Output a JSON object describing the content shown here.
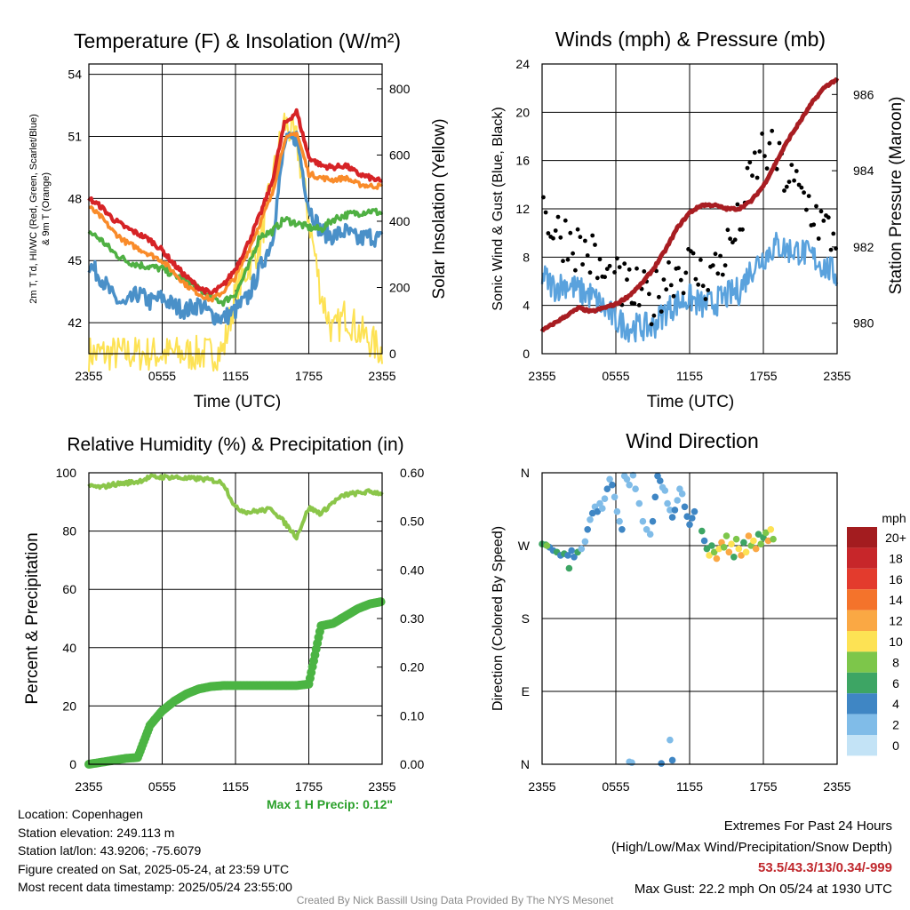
{
  "colors": {
    "red": "#d62326",
    "orange": "#f98b2a",
    "green": "#4fb043",
    "blue": "#4a90c8",
    "yellow": "#fde254",
    "maroon": "#a81d22",
    "black": "#000000",
    "light_blue": "#5aa2dd",
    "rh_green": "#8bc64a",
    "precip_green": "#4bb443",
    "grid": "#000000"
  },
  "chart_data": [
    {
      "id": "temp",
      "type": "line",
      "title": "Temperature (F) & Insolation (W/m²)",
      "xlabel": "Time (UTC)",
      "ylabel": "2m T, T d, HI/WC (Red, Green, Scarlet/Blue) & 9m T (Orange)",
      "ylabel_lines": [
        "2m T, T",
        "d",
        ", HI/WC (Red, Green, Scarlet/Blue)",
        "& 9m T (Orange)"
      ],
      "y2label": "Solar Insolation (Yellow)",
      "x_ticks": [
        "2355",
        "0555",
        "1155",
        "1755",
        "2355"
      ],
      "ylim": [
        40.5,
        54.5
      ],
      "yticks": [
        42,
        45,
        48,
        51,
        54
      ],
      "y2lim": [
        0,
        875
      ],
      "y2ticks": [
        0,
        200,
        400,
        600,
        800
      ],
      "grid": true,
      "x_hours": [
        0,
        1,
        2,
        3,
        4,
        5,
        6,
        7,
        8,
        9,
        10,
        11,
        12,
        13,
        14,
        15,
        16,
        17,
        18,
        19,
        20,
        21,
        22,
        23,
        24
      ],
      "series": [
        {
          "name": "2m T",
          "color": "red",
          "axis": "left",
          "values": [
            48.0,
            47.6,
            47.0,
            46.6,
            46.3,
            46.0,
            45.5,
            44.8,
            44.2,
            43.7,
            43.4,
            43.8,
            44.6,
            45.8,
            47.2,
            48.8,
            51.6,
            52.2,
            50.0,
            49.6,
            49.5,
            49.6,
            49.2,
            49.0,
            48.8
          ]
        },
        {
          "name": "9m T",
          "color": "orange",
          "axis": "left",
          "values": [
            47.6,
            47.1,
            46.4,
            45.9,
            45.6,
            45.3,
            45.0,
            44.4,
            43.8,
            43.4,
            43.1,
            43.5,
            44.2,
            45.4,
            46.8,
            48.2,
            50.8,
            51.2,
            49.2,
            49.0,
            48.9,
            49.0,
            48.7,
            48.6,
            48.6
          ]
        },
        {
          "name": "Td",
          "color": "green",
          "axis": "left",
          "values": [
            46.4,
            46.0,
            45.4,
            45.0,
            44.8,
            44.7,
            44.6,
            44.3,
            44.0,
            43.6,
            43.2,
            43.0,
            43.4,
            44.6,
            46.2,
            46.4,
            47.0,
            46.8,
            46.6,
            46.5,
            47.0,
            47.2,
            47.3,
            47.4,
            47.3
          ]
        },
        {
          "name": "HI/WC",
          "color": "blue",
          "axis": "left",
          "values": [
            44.8,
            44.2,
            43.2,
            42.8,
            43.4,
            43.0,
            43.2,
            42.8,
            42.6,
            42.9,
            42.4,
            42.2,
            42.6,
            43.2,
            44.6,
            46.0,
            50.6,
            51.0,
            47.6,
            46.4,
            46.2,
            46.4,
            46.0,
            46.2,
            46.0
          ]
        },
        {
          "name": "Insolation",
          "color": "yellow",
          "axis": "right",
          "values": [
            0,
            0,
            0,
            0,
            0,
            0,
            0,
            0,
            0,
            0,
            0,
            10,
            180,
            260,
            330,
            520,
            700,
            640,
            410,
            180,
            60,
            120,
            70,
            40,
            5
          ]
        }
      ]
    },
    {
      "id": "winds",
      "type": "line",
      "title": "Winds (mph) & Pressure (mb)",
      "xlabel": "Time (UTC)",
      "ylabel": "Sonic Wind & Gust (Blue, Black)",
      "y2label": "Station Pressure (Maroon)",
      "x_ticks": [
        "2355",
        "0555",
        "1155",
        "1755",
        "2355"
      ],
      "ylim": [
        0,
        24
      ],
      "yticks": [
        0,
        4,
        8,
        12,
        16,
        20,
        24
      ],
      "y2lim": [
        979.2,
        986.8
      ],
      "y2ticks": [
        980,
        982,
        984,
        986
      ],
      "grid": true,
      "x_hours": [
        0,
        1,
        2,
        3,
        4,
        5,
        6,
        7,
        8,
        9,
        10,
        11,
        12,
        13,
        14,
        15,
        16,
        17,
        18,
        19,
        20,
        21,
        22,
        23,
        24
      ],
      "series": [
        {
          "name": "Wind",
          "color": "light_blue",
          "axis": "left",
          "values": [
            6.5,
            5.5,
            5.8,
            5.2,
            4.8,
            3.8,
            2.8,
            2.2,
            2.2,
            2.2,
            3.5,
            4.2,
            4.6,
            4.0,
            4.2,
            4.8,
            5.2,
            7.0,
            8.0,
            9.0,
            8.6,
            8.5,
            8.0,
            7.2,
            6.5
          ]
        },
        {
          "name": "Gust",
          "color": "black",
          "axis": "left",
          "style": "points",
          "values": [
            12.5,
            10.0,
            9.8,
            8.8,
            8.2,
            6.2,
            5.8,
            5.2,
            4.8,
            4.2,
            6.4,
            7.0,
            7.2,
            6.2,
            6.8,
            8.5,
            10.5,
            14.5,
            17.0,
            16.0,
            14.5,
            13.2,
            12.0,
            10.2,
            9.5
          ]
        },
        {
          "name": "Pressure",
          "color": "maroon",
          "axis": "right",
          "values": [
            979.8,
            980.0,
            980.2,
            980.4,
            980.3,
            980.4,
            980.5,
            980.7,
            981.0,
            981.4,
            981.9,
            982.5,
            982.9,
            983.1,
            983.1,
            983.0,
            983.0,
            983.2,
            983.6,
            984.2,
            984.8,
            985.3,
            985.8,
            986.2,
            986.4
          ]
        }
      ]
    },
    {
      "id": "rh",
      "type": "line",
      "title": "Relative Humidity (%) & Precipitation (in)",
      "ylabel": "Percent & Precipitation",
      "x_ticks": [
        "2355",
        "0555",
        "1155",
        "1755",
        "2355"
      ],
      "ylim": [
        0,
        100
      ],
      "yticks": [
        0,
        20,
        40,
        60,
        80,
        100
      ],
      "y2lim": [
        0,
        0.6
      ],
      "y2ticks": [
        "0.00",
        "0.10",
        "0.20",
        "0.30",
        "0.40",
        "0.50",
        "0.60"
      ],
      "grid": true,
      "x_hours": [
        0,
        1,
        2,
        3,
        4,
        5,
        6,
        7,
        8,
        9,
        10,
        11,
        12,
        13,
        14,
        15,
        16,
        17,
        18,
        19,
        20,
        21,
        22,
        23,
        24
      ],
      "series": [
        {
          "name": "RH",
          "color": "rh_green",
          "axis": "left",
          "values": [
            95.5,
            95.0,
            96.0,
            96.5,
            97.0,
            98.5,
            98.5,
            98.5,
            98.0,
            98.0,
            97.5,
            96.5,
            88.0,
            86.5,
            87.0,
            87.5,
            83.0,
            78.0,
            88.0,
            86.0,
            90.0,
            92.5,
            93.0,
            93.5,
            93.0
          ]
        },
        {
          "name": "Precipitation",
          "color": "precip_green",
          "axis": "right",
          "values": [
            0.0,
            0.004,
            0.008,
            0.012,
            0.014,
            0.08,
            0.11,
            0.13,
            0.145,
            0.155,
            0.16,
            0.162,
            0.162,
            0.162,
            0.162,
            0.162,
            0.162,
            0.162,
            0.165,
            0.285,
            0.29,
            0.305,
            0.32,
            0.33,
            0.335
          ]
        }
      ]
    },
    {
      "id": "wdir",
      "type": "scatter",
      "title": "Wind Direction",
      "ylabel": "Direction (Colored By Speed)",
      "x_ticks": [
        "2355",
        "0555",
        "1155",
        "1755",
        "2355"
      ],
      "ylim": [
        0,
        360
      ],
      "y_ticks": [
        "N",
        "E",
        "S",
        "W",
        "N"
      ],
      "grid": true,
      "legend_title": "mph",
      "legend_labels": [
        "20+",
        "18",
        "16",
        "14",
        "12",
        "10",
        "8",
        "6",
        "4",
        "2",
        "0"
      ],
      "legend_colors": [
        "#a31c1f",
        "#c7262a",
        "#e33b2d",
        "#f4732b",
        "#faa844",
        "#fde254",
        "#7dc64a",
        "#3da564",
        "#3f86c4",
        "#80bce8",
        "#c3e3f6"
      ],
      "points": [
        [
          0.0,
          272,
          6
        ],
        [
          0.3,
          271,
          6
        ],
        [
          0.6,
          268,
          4
        ],
        [
          0.9,
          264,
          4
        ],
        [
          1.2,
          262,
          6
        ],
        [
          1.5,
          258,
          4
        ],
        [
          1.8,
          260,
          6
        ],
        [
          2.1,
          258,
          4
        ],
        [
          2.4,
          264,
          4
        ],
        [
          2.6,
          256,
          4
        ],
        [
          2.9,
          262,
          6
        ],
        [
          3.2,
          266,
          2
        ],
        [
          3.5,
          275,
          2
        ],
        [
          3.7,
          290,
          4
        ],
        [
          3.9,
          302,
          2
        ],
        [
          4.1,
          310,
          4
        ],
        [
          4.3,
          318,
          2
        ],
        [
          4.5,
          312,
          4
        ],
        [
          4.7,
          322,
          2
        ],
        [
          4.9,
          316,
          2
        ],
        [
          5.1,
          328,
          2
        ],
        [
          5.3,
          340,
          4
        ],
        [
          5.5,
          352,
          2
        ],
        [
          5.7,
          345,
          4
        ],
        [
          5.9,
          330,
          2
        ],
        [
          6.1,
          312,
          2
        ],
        [
          6.3,
          300,
          2
        ],
        [
          6.5,
          290,
          4
        ],
        [
          6.7,
          356,
          2
        ],
        [
          6.9,
          352,
          2
        ],
        [
          7.1,
          345,
          2
        ],
        [
          7.4,
          357,
          2
        ],
        [
          7.6,
          340,
          2
        ],
        [
          7.9,
          322,
          2
        ],
        [
          8.2,
          300,
          2
        ],
        [
          8.5,
          290,
          2
        ],
        [
          8.8,
          284,
          2
        ],
        [
          9.0,
          300,
          4
        ],
        [
          9.2,
          330,
          4
        ],
        [
          9.4,
          356,
          4
        ],
        [
          9.6,
          350,
          4
        ],
        [
          9.8,
          342,
          2
        ],
        [
          10.0,
          338,
          2
        ],
        [
          10.2,
          322,
          2
        ],
        [
          10.4,
          314,
          2
        ],
        [
          10.6,
          305,
          4
        ],
        [
          10.8,
          314,
          4
        ],
        [
          11.0,
          326,
          2
        ],
        [
          11.2,
          340,
          2
        ],
        [
          11.4,
          334,
          2
        ],
        [
          11.6,
          318,
          4
        ],
        [
          11.8,
          306,
          4
        ],
        [
          12.0,
          296,
          4
        ],
        [
          12.2,
          304,
          4
        ],
        [
          12.4,
          312,
          4
        ],
        [
          13.0,
          288,
          6
        ],
        [
          13.2,
          276,
          4
        ],
        [
          13.4,
          266,
          6
        ],
        [
          13.6,
          258,
          10
        ],
        [
          13.8,
          270,
          6
        ],
        [
          14.0,
          262,
          8
        ],
        [
          14.2,
          254,
          12
        ],
        [
          14.4,
          266,
          10
        ],
        [
          14.6,
          274,
          12
        ],
        [
          14.8,
          268,
          8
        ],
        [
          15.0,
          282,
          8
        ],
        [
          15.2,
          262,
          12
        ],
        [
          15.4,
          272,
          10
        ],
        [
          15.6,
          256,
          6
        ],
        [
          15.8,
          278,
          8
        ],
        [
          16.0,
          266,
          10
        ],
        [
          16.2,
          258,
          12
        ],
        [
          16.4,
          274,
          6
        ],
        [
          16.6,
          262,
          10
        ],
        [
          16.8,
          282,
          12
        ],
        [
          17.0,
          270,
          8
        ],
        [
          17.2,
          276,
          10
        ],
        [
          17.4,
          266,
          12
        ],
        [
          17.6,
          284,
          6
        ],
        [
          17.8,
          272,
          8
        ],
        [
          18.0,
          280,
          6
        ],
        [
          18.2,
          286,
          8
        ],
        [
          18.4,
          276,
          12
        ],
        [
          18.6,
          290,
          10
        ],
        [
          18.8,
          278,
          8
        ],
        [
          7.1,
          3,
          2
        ],
        [
          7.3,
          2,
          2
        ],
        [
          9.7,
          1,
          4
        ],
        [
          10.4,
          30,
          2
        ],
        [
          10.6,
          5,
          4
        ],
        [
          0.4,
          270,
          8
        ],
        [
          2.2,
          242,
          6
        ]
      ]
    }
  ],
  "max_precip": "Max 1 H Precip: 0.12\"",
  "info": {
    "location": "Location: Copenhagen",
    "elevation": "Station elevation: 249.113 m",
    "latlon": "Station lat/lon: 43.9206; -75.6079",
    "created": "Figure created on Sat, 2025-05-24, at 23:59 UTC",
    "recent": "Most recent data timestamp: 2025/05/24 23:55:00"
  },
  "extremes": {
    "title": "Extremes For Past 24 Hours",
    "subtitle": "(High/Low/Max Wind/Precipitation/Snow Depth)",
    "values": "53.5/43.3/13/0.34/-999",
    "max_gust": "Max Gust: 22.2 mph On 05/24 at 1930 UTC"
  },
  "credit": "Created By Nick Bassill Using Data Provided By The NYS Mesonet"
}
